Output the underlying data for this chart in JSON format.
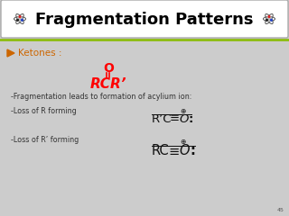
{
  "title": "Fragmentation Patterns",
  "title_fontsize": 13,
  "slide_bg": "#cccccc",
  "header_bg": "#e0e0e0",
  "green_line_color": "#88bb00",
  "bullet_color": "#cc6600",
  "bullet_text": "Ketones :",
  "line1": "-Fragmentation leads to formation of acylium ion:",
  "line2": "-Loss of R forming",
  "line3": "-Loss of R’ forming",
  "page_num": "45",
  "ketone_O": "O",
  "ketone_bond": "||",
  "ketone_base": "RCR’",
  "ion1_parts": [
    "R’C",
    "≡",
    "O",
    ":"
  ],
  "ion2_parts": [
    "RC",
    "≡",
    "O",
    ":"
  ],
  "plus_sym": "⊕"
}
